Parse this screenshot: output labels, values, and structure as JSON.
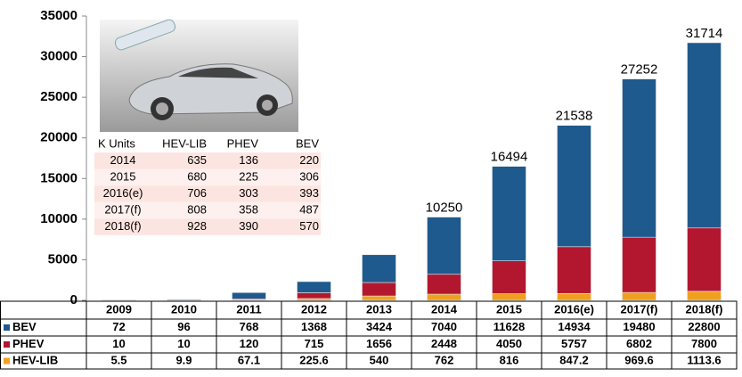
{
  "chart_data": {
    "type": "stacked_bar",
    "categories": [
      "2009",
      "2010",
      "2011",
      "2012",
      "2013",
      "2014",
      "2015",
      "2016(e)",
      "2017(f)",
      "2018(f)"
    ],
    "series": [
      {
        "name": "BEV",
        "color": "#1f5a8e",
        "values": [
          72,
          96,
          768,
          1368,
          3424,
          7040,
          11628,
          14934,
          19480,
          22800
        ]
      },
      {
        "name": "PHEV",
        "color": "#b3172f",
        "values": [
          10,
          10,
          120,
          715,
          1656,
          2448,
          4050,
          5757,
          6802,
          7800
        ]
      },
      {
        "name": "HEV-LIB",
        "color": "#f0a020",
        "values": [
          5.5,
          9.9,
          67.1,
          225.6,
          540,
          762,
          816,
          847.2,
          969.6,
          1113.6
        ]
      }
    ],
    "totals": [
      null,
      null,
      null,
      null,
      null,
      10250,
      16494,
      21538,
      27252,
      31714
    ],
    "ylim": [
      0,
      35000
    ],
    "yticks": [
      0,
      5000,
      10000,
      15000,
      20000,
      25000,
      30000,
      35000
    ],
    "grid": false,
    "inset_table": {
      "header": [
        "K Units",
        "HEV-LIB",
        "PHEV",
        "BEV"
      ],
      "rows": [
        [
          "2014",
          "635",
          "136",
          "220"
        ],
        [
          "2015",
          "680",
          "225",
          "306"
        ],
        [
          "2016(e)",
          "706",
          "303",
          "393"
        ],
        [
          "2017(f)",
          "808",
          "358",
          "487"
        ],
        [
          "2018(f)",
          "928",
          "390",
          "570"
        ]
      ]
    }
  }
}
